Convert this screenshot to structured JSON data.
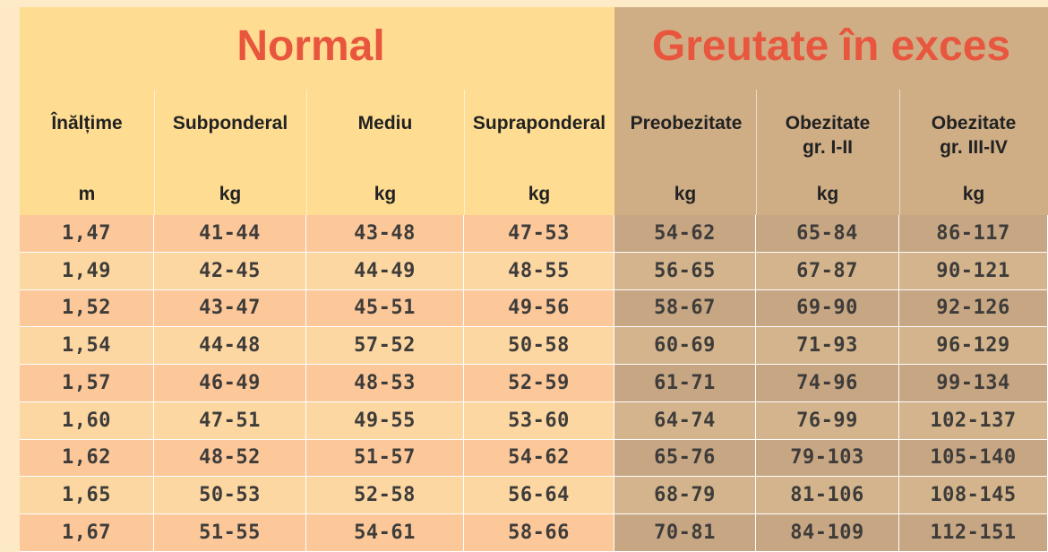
{
  "groups": {
    "normal": "Normal",
    "excess": "Greutate în exces"
  },
  "columns": [
    {
      "header": [
        "Înălțime"
      ],
      "unit": "m"
    },
    {
      "header": [
        "Subponderal"
      ],
      "unit": "kg"
    },
    {
      "header": [
        "Mediu"
      ],
      "unit": "kg"
    },
    {
      "header": [
        "Supraponderal"
      ],
      "unit": "kg"
    },
    {
      "header": [
        "Preobezitate"
      ],
      "unit": "kg"
    },
    {
      "header": [
        "Obezitate",
        "gr. I-II"
      ],
      "unit": "kg"
    },
    {
      "header": [
        "Obezitate",
        "gr. III-IV"
      ],
      "unit": "kg"
    }
  ],
  "rows": [
    [
      "1,47",
      "41-44",
      "43-48",
      "47-53",
      "54-62",
      "65-84",
      "86-117"
    ],
    [
      "1,49",
      "42-45",
      "44-49",
      "48-55",
      "56-65",
      "67-87",
      "90-121"
    ],
    [
      "1,52",
      "43-47",
      "45-51",
      "49-56",
      "58-67",
      "69-90",
      "92-126"
    ],
    [
      "1,54",
      "44-48",
      "57-52",
      "50-58",
      "60-69",
      "71-93",
      "96-129"
    ],
    [
      "1,57",
      "46-49",
      "48-53",
      "52-59",
      "61-71",
      "74-96",
      "99-134"
    ],
    [
      "1,60",
      "47-51",
      "49-55",
      "53-60",
      "64-74",
      "76-99",
      "102-137"
    ],
    [
      "1,62",
      "48-52",
      "51-57",
      "54-62",
      "65-76",
      "79-103",
      "105-140"
    ],
    [
      "1,65",
      "50-53",
      "52-58",
      "56-64",
      "68-79",
      "81-106",
      "108-145"
    ],
    [
      "1,67",
      "51-55",
      "54-61",
      "58-66",
      "70-81",
      "84-109",
      "112-151"
    ]
  ]
}
